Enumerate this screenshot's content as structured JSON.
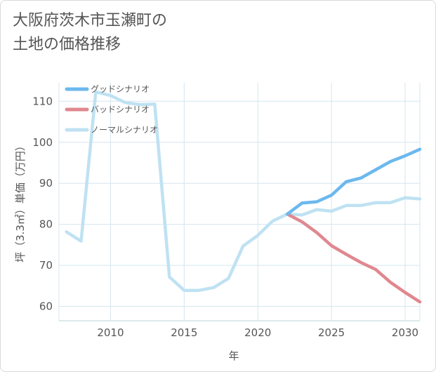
{
  "title_lines": [
    "大阪府茨木市玉瀬町の",
    "土地の価格推移"
  ],
  "chart_data": {
    "type": "line",
    "title": "大阪府茨木市玉瀬町の土地の価格推移",
    "xlabel": "年",
    "ylabel": "坪（3.3㎡）単価（万円）",
    "xlim": [
      2006.5,
      2031
    ],
    "ylim": [
      56.5,
      114.5
    ],
    "x_ticks": [
      2010,
      2015,
      2020,
      2025,
      2030
    ],
    "y_ticks": [
      60,
      70,
      80,
      90,
      100,
      110
    ],
    "grid": true,
    "legend_position": "top-left",
    "series": [
      {
        "name": "グッドシナリオ",
        "color": "#6cb8ee",
        "points": [
          [
            2022,
            82.5
          ],
          [
            2023,
            85.2
          ],
          [
            2024,
            85.5
          ],
          [
            2025,
            87.1
          ],
          [
            2026,
            90.4
          ],
          [
            2027,
            91.3
          ],
          [
            2028,
            93.3
          ],
          [
            2029,
            95.3
          ],
          [
            2030,
            96.7
          ],
          [
            2031,
            98.3
          ]
        ]
      },
      {
        "name": "バッドシナリオ",
        "color": "#e0888f",
        "points": [
          [
            2022,
            82.5
          ],
          [
            2023,
            80.6
          ],
          [
            2024,
            78.0
          ],
          [
            2025,
            74.8
          ],
          [
            2026,
            72.7
          ],
          [
            2027,
            70.7
          ],
          [
            2028,
            69.0
          ],
          [
            2029,
            65.9
          ],
          [
            2030,
            63.4
          ],
          [
            2031,
            61.1
          ]
        ]
      },
      {
        "name": "ノーマルシナリオ",
        "color": "#bfe2f2",
        "points": [
          [
            2007,
            78.2
          ],
          [
            2008,
            75.9
          ],
          [
            2009,
            112.3
          ],
          [
            2010,
            111.4
          ],
          [
            2011,
            109.7
          ],
          [
            2012,
            109.2
          ],
          [
            2013,
            109.3
          ],
          [
            2014,
            67.2
          ],
          [
            2015,
            63.9
          ],
          [
            2016,
            63.9
          ],
          [
            2017,
            64.6
          ],
          [
            2018,
            66.8
          ],
          [
            2019,
            74.7
          ],
          [
            2020,
            77.3
          ],
          [
            2021,
            80.8
          ],
          [
            2022,
            82.5
          ],
          [
            2023,
            82.3
          ],
          [
            2024,
            83.6
          ],
          [
            2025,
            83.2
          ],
          [
            2026,
            84.6
          ],
          [
            2027,
            84.6
          ],
          [
            2028,
            85.3
          ],
          [
            2029,
            85.3
          ],
          [
            2030,
            86.5
          ],
          [
            2031,
            86.2
          ]
        ]
      }
    ]
  }
}
